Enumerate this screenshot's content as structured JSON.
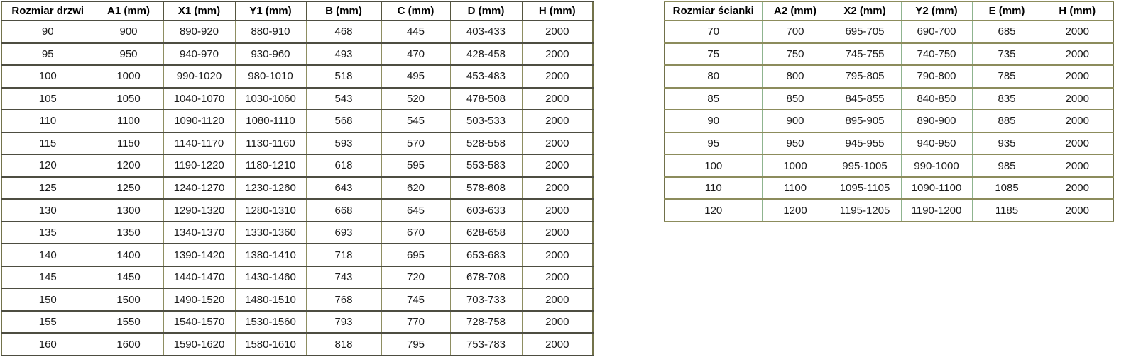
{
  "tables": [
    {
      "name": "door-size-table",
      "headers": [
        "Rozmiar drzwi",
        "A1 (mm)",
        "X1 (mm)",
        "Y1 (mm)",
        "B (mm)",
        "C (mm)",
        "D (mm)",
        "H (mm)"
      ],
      "rows": [
        [
          "90",
          "900",
          "890-920",
          "880-910",
          "468",
          "445",
          "403-433",
          "2000"
        ],
        [
          "95",
          "950",
          "940-970",
          "930-960",
          "493",
          "470",
          "428-458",
          "2000"
        ],
        [
          "100",
          "1000",
          "990-1020",
          "980-1010",
          "518",
          "495",
          "453-483",
          "2000"
        ],
        [
          "105",
          "1050",
          "1040-1070",
          "1030-1060",
          "543",
          "520",
          "478-508",
          "2000"
        ],
        [
          "110",
          "1100",
          "1090-1120",
          "1080-1110",
          "568",
          "545",
          "503-533",
          "2000"
        ],
        [
          "115",
          "1150",
          "1140-1170",
          "1130-1160",
          "593",
          "570",
          "528-558",
          "2000"
        ],
        [
          "120",
          "1200",
          "1190-1220",
          "1180-1210",
          "618",
          "595",
          "553-583",
          "2000"
        ],
        [
          "125",
          "1250",
          "1240-1270",
          "1230-1260",
          "643",
          "620",
          "578-608",
          "2000"
        ],
        [
          "130",
          "1300",
          "1290-1320",
          "1280-1310",
          "668",
          "645",
          "603-633",
          "2000"
        ],
        [
          "135",
          "1350",
          "1340-1370",
          "1330-1360",
          "693",
          "670",
          "628-658",
          "2000"
        ],
        [
          "140",
          "1400",
          "1390-1420",
          "1380-1410",
          "718",
          "695",
          "653-683",
          "2000"
        ],
        [
          "145",
          "1450",
          "1440-1470",
          "1430-1460",
          "743",
          "720",
          "678-708",
          "2000"
        ],
        [
          "150",
          "1500",
          "1490-1520",
          "1480-1510",
          "768",
          "745",
          "703-733",
          "2000"
        ],
        [
          "155",
          "1550",
          "1540-1570",
          "1530-1560",
          "793",
          "770",
          "728-758",
          "2000"
        ],
        [
          "160",
          "1600",
          "1590-1620",
          "1580-1610",
          "818",
          "795",
          "753-783",
          "2000"
        ]
      ]
    },
    {
      "name": "wall-size-table",
      "headers": [
        "Rozmiar ścianki",
        "A2 (mm)",
        "X2 (mm)",
        "Y2 (mm)",
        "E (mm)",
        "H (mm)"
      ],
      "rows": [
        [
          "70",
          "700",
          "695-705",
          "690-700",
          "685",
          "2000"
        ],
        [
          "75",
          "750",
          "745-755",
          "740-750",
          "735",
          "2000"
        ],
        [
          "80",
          "800",
          "795-805",
          "790-800",
          "785",
          "2000"
        ],
        [
          "85",
          "850",
          "845-855",
          "840-850",
          "835",
          "2000"
        ],
        [
          "90",
          "900",
          "895-905",
          "890-900",
          "885",
          "2000"
        ],
        [
          "95",
          "950",
          "945-955",
          "940-950",
          "935",
          "2000"
        ],
        [
          "100",
          "1000",
          "995-1005",
          "990-1000",
          "985",
          "2000"
        ],
        [
          "110",
          "1100",
          "1095-1105",
          "1090-1100",
          "1085",
          "2000"
        ],
        [
          "120",
          "1200",
          "1195-1205",
          "1190-1200",
          "1185",
          "2000"
        ]
      ]
    }
  ],
  "style": {
    "door_outer": "#73734b",
    "door_hline": "#4d4d41",
    "door_vline": "#8e8e62",
    "wall_outer": "#70704a",
    "wall_hline": "#8c8c5c",
    "wall_vline": "#8fb48f",
    "text_color": "#1b1b1b"
  }
}
